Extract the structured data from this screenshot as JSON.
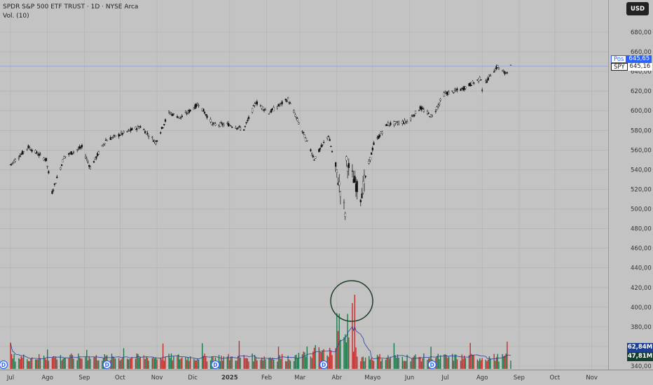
{
  "header": {
    "title": "SPDR S&P 500 ETF TRUST · 1D · NYSE Arca",
    "indicator": "Vol. (10)"
  },
  "currency_button": "USD",
  "price_tags": {
    "pos": {
      "label": "Pos",
      "value": "645,65",
      "color": "#2962ff"
    },
    "last": {
      "label": "SPY",
      "value": "645,16",
      "color": "#222222"
    }
  },
  "volume_tags": {
    "ma": {
      "value": "62,84M",
      "color": "#1c3f8f"
    },
    "volume": {
      "value": "47,81M",
      "color": "#16402e"
    }
  },
  "dividend_marker": "D",
  "chart_data": {
    "type": "candlestick",
    "symbol": "SPY",
    "interval": "1D",
    "y_range": [
      340,
      700
    ],
    "y_ticks": [
      "340,00",
      "360,00",
      "380,00",
      "400,00",
      "420,00",
      "440,00",
      "460,00",
      "480,00",
      "500,00",
      "520,00",
      "540,00",
      "560,00",
      "580,00",
      "600,00",
      "620,00",
      "640,00",
      "660,00",
      "680,00"
    ],
    "x_labels": [
      "Jul",
      "Ago",
      "Sep",
      "Oct",
      "Nov",
      "Dic",
      "2025",
      "Feb",
      "Mar",
      "Abr",
      "Mayo",
      "Jun",
      "Jul",
      "Ago",
      "Sep",
      "Oct",
      "Nov"
    ],
    "price_series": [
      {
        "date": "2024-07-01",
        "close": 545
      },
      {
        "date": "2024-07-16",
        "close": 563
      },
      {
        "date": "2024-07-31",
        "close": 550
      },
      {
        "date": "2024-08-05",
        "close": 517
      },
      {
        "date": "2024-08-15",
        "close": 553
      },
      {
        "date": "2024-08-30",
        "close": 563
      },
      {
        "date": "2024-09-06",
        "close": 542
      },
      {
        "date": "2024-09-19",
        "close": 570
      },
      {
        "date": "2024-10-18",
        "close": 584
      },
      {
        "date": "2024-10-31",
        "close": 568
      },
      {
        "date": "2024-11-11",
        "close": 598
      },
      {
        "date": "2024-11-21",
        "close": 593
      },
      {
        "date": "2024-12-06",
        "close": 607
      },
      {
        "date": "2024-12-18",
        "close": 586
      },
      {
        "date": "2024-12-31",
        "close": 586
      },
      {
        "date": "2025-01-13",
        "close": 581
      },
      {
        "date": "2025-01-23",
        "close": 609
      },
      {
        "date": "2025-02-03",
        "close": 598
      },
      {
        "date": "2025-02-19",
        "close": 612
      },
      {
        "date": "2025-03-10",
        "close": 560
      },
      {
        "date": "2025-03-13",
        "close": 551
      },
      {
        "date": "2025-03-25",
        "close": 575
      },
      {
        "date": "2025-04-08",
        "close": 496
      },
      {
        "date": "2025-04-09",
        "close": 548
      },
      {
        "date": "2025-04-21",
        "close": 513
      },
      {
        "date": "2025-05-02",
        "close": 566
      },
      {
        "date": "2025-05-13",
        "close": 586
      },
      {
        "date": "2025-05-30",
        "close": 589
      },
      {
        "date": "2025-06-10",
        "close": 603
      },
      {
        "date": "2025-06-20",
        "close": 594
      },
      {
        "date": "2025-06-30",
        "close": 617
      },
      {
        "date": "2025-07-15",
        "close": 622
      },
      {
        "date": "2025-07-31",
        "close": 633
      },
      {
        "date": "2025-08-01",
        "close": 622
      },
      {
        "date": "2025-08-08",
        "close": 637
      },
      {
        "date": "2025-08-14",
        "close": 645
      },
      {
        "date": "2025-08-20",
        "close": 638
      },
      {
        "date": "2025-08-25",
        "close": 645.16
      }
    ],
    "volume": {
      "shown_as": "bars with 10-day moving average",
      "last_volume": "47,81M",
      "last_ma": "62,84M",
      "up_color": "#1e7a4d",
      "down_color": "#c0302e"
    },
    "dividend_dates": [
      "2024-06-21",
      "2024-09-20",
      "2024-12-20",
      "2025-03-21",
      "2025-06-20"
    ],
    "annotations": [
      {
        "type": "circle",
        "target": "volume spike April 2025"
      }
    ],
    "grid": true
  }
}
